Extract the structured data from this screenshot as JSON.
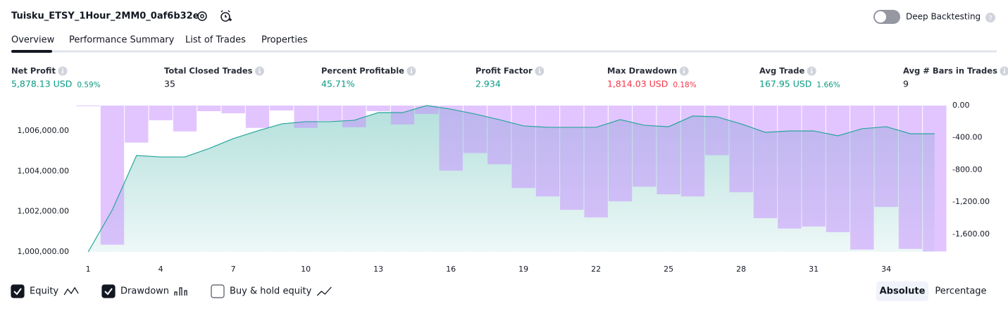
{
  "header": {
    "title": "Tuisku_ETSY_1Hour_2MM0_0af6b32e",
    "toggle_label": "Deep Backtesting"
  },
  "tabs": [
    "Overview",
    "Performance Summary",
    "List of Trades",
    "Properties"
  ],
  "metrics": [
    {
      "label": "Net Profit",
      "value": "5,878.13 USD",
      "percent": "0.59%",
      "color": "#089981"
    },
    {
      "label": "Total Closed Trades",
      "value": "35",
      "color": "#131722"
    },
    {
      "label": "Percent Profitable",
      "value": "45.71%",
      "color": "#089981"
    },
    {
      "label": "Profit Factor",
      "value": "2.934",
      "color": "#089981"
    },
    {
      "label": "Max Drawdown",
      "value": "1,814.03 USD",
      "percent": "0.18%",
      "color": "#f23645"
    },
    {
      "label": "Avg Trade",
      "value": "167.95 USD",
      "percent": "1.66%",
      "color": "#089981"
    },
    {
      "label": "Avg # Bars in Trades",
      "value": "9",
      "color": "#131722"
    }
  ],
  "chart_data": {
    "type": "bar-line",
    "x": [
      1,
      2,
      3,
      4,
      5,
      6,
      7,
      8,
      9,
      10,
      11,
      12,
      13,
      14,
      15,
      16,
      17,
      18,
      19,
      20,
      21,
      22,
      23,
      24,
      25,
      26,
      27,
      28,
      29,
      30,
      31,
      32,
      33,
      34,
      35,
      36
    ],
    "xlim": [
      0.5,
      36.5
    ],
    "xticks": [
      1,
      4,
      7,
      10,
      13,
      16,
      19,
      22,
      25,
      28,
      31,
      34
    ],
    "ylim": [
      1000000,
      1007260
    ],
    "yticks": [
      {
        "value": 1000000,
        "label": "1,000,000.00"
      },
      {
        "value": 1002000,
        "label": "1,002,000.00"
      },
      {
        "value": 1004000,
        "label": "1,004,000.00"
      },
      {
        "value": 1006000,
        "label": "1,006,000.00"
      }
    ],
    "y2lim": [
      -1820,
      0
    ],
    "y2ticks": [
      {
        "value": 0,
        "label": "0.00"
      },
      {
        "value": -400,
        "label": "-400.00"
      },
      {
        "value": -800,
        "label": "-800.00"
      },
      {
        "value": -1200,
        "label": "-1,200.00"
      },
      {
        "value": -1600,
        "label": "-1,600.00"
      }
    ],
    "series": [
      {
        "name": "Equity",
        "color": "#26a69a",
        "type": "line",
        "values": [
          1000000,
          1002090,
          1004780,
          1004710,
          1004710,
          1005130,
          1005620,
          1006000,
          1006350,
          1006460,
          1006460,
          1006530,
          1006910,
          1006910,
          1007260,
          1007080,
          1006840,
          1006560,
          1006250,
          1006180,
          1006180,
          1006180,
          1006560,
          1006280,
          1006210,
          1006740,
          1006700,
          1006350,
          1005930,
          1006000,
          1006000,
          1005760,
          1006110,
          1006210,
          1005860,
          1005860
        ]
      },
      {
        "name": "Drawdown",
        "color": "#c58cff",
        "type": "bar",
        "axis": "y2",
        "values": [
          -8,
          -1730,
          -461,
          -183,
          -322,
          -70,
          -96,
          -278,
          -61,
          -278,
          -191,
          -270,
          -70,
          -235,
          -104,
          -809,
          -591,
          -730,
          -1026,
          -1130,
          -1296,
          -1391,
          -1191,
          -1009,
          -1104,
          -1130,
          -617,
          -1078,
          -1400,
          -1530,
          -1504,
          -1574,
          -1791,
          -1261,
          -1783,
          -1814
        ]
      }
    ]
  },
  "legend": [
    {
      "label": "Equity",
      "checked": true
    },
    {
      "label": "Drawdown",
      "checked": true
    },
    {
      "label": "Buy & hold equity",
      "checked": false
    }
  ],
  "modes": [
    {
      "label": "Absolute",
      "active": true
    },
    {
      "label": "Percentage",
      "active": false
    }
  ]
}
